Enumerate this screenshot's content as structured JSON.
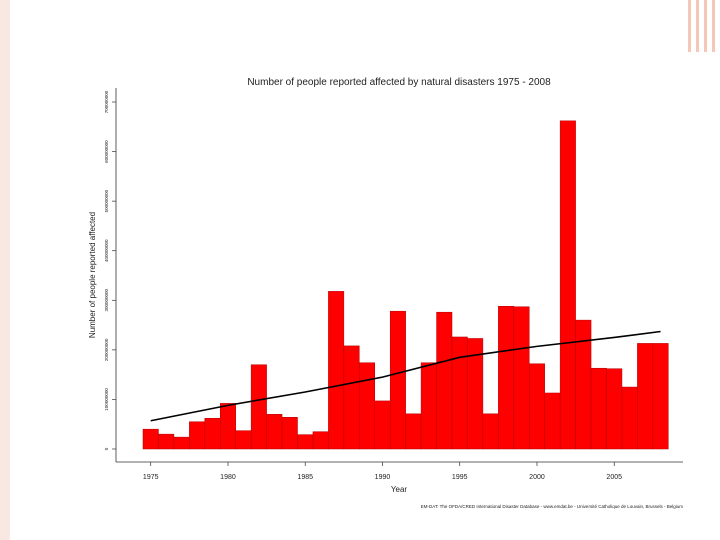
{
  "colors": {
    "bar": "#ff0000",
    "bar_edge": "#b00000",
    "trend": "#000000",
    "accent": "#f0b8a0"
  },
  "chart_data": {
    "type": "bar",
    "title": "Number of people reported affected by natural disasters 1975 - 2008",
    "xlabel": "Year",
    "ylabel": "Number of people reported affected",
    "source": "EM-DAT: The OFDA/CRED International Disaster Database - www.emdat.be - Université Catholique de Louvain, Brussels - Belgium",
    "x_ticks": [
      "1975",
      "1980",
      "1985",
      "1990",
      "1995",
      "2000",
      "2005"
    ],
    "y_tick_labels": [
      "0",
      "100000000",
      "200000000",
      "300000000",
      "400000000",
      "500000000",
      "600000000",
      "700000000"
    ],
    "ylim": [
      0,
      720000000
    ],
    "categories": [
      "1975",
      "1976",
      "1977",
      "1978",
      "1979",
      "1980",
      "1981",
      "1982",
      "1983",
      "1984",
      "1985",
      "1986",
      "1987",
      "1988",
      "1989",
      "1990",
      "1991",
      "1992",
      "1993",
      "1994",
      "1995",
      "1996",
      "1997",
      "1998",
      "1999",
      "2000",
      "2001",
      "2002",
      "2003",
      "2004",
      "2005",
      "2006",
      "2007",
      "2008"
    ],
    "series": [
      {
        "values": [
          40000000,
          30000000,
          24000000,
          55000000,
          62000000,
          92000000,
          37000000,
          170000000,
          70000000,
          64000000,
          29000000,
          35000000,
          318000000,
          208000000,
          174000000,
          97000000,
          278000000,
          71000000,
          174000000,
          276000000,
          226000000,
          223000000,
          71000000,
          288000000,
          287000000,
          172000000,
          113000000,
          662000000,
          260000000,
          163000000,
          162000000,
          125000000,
          213000000,
          213000000
        ]
      }
    ],
    "trend": {
      "x": [
        "1975",
        "1980",
        "1985",
        "1990",
        "1995",
        "2000",
        "2005",
        "2008"
      ],
      "y": [
        57000000,
        88000000,
        115000000,
        145000000,
        185000000,
        207000000,
        225000000,
        237000000
      ]
    },
    "grid": false,
    "legend": "none"
  }
}
